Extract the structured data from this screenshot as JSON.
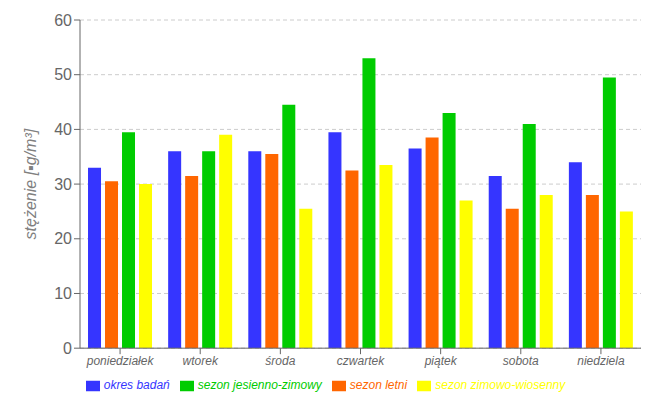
{
  "chart_data": {
    "type": "bar",
    "ylabel": "stężenie [▪g/m³]",
    "categories": [
      "poniedziałek",
      "wtorek",
      "środa",
      "czwartek",
      "piątek",
      "sobota",
      "niedziela"
    ],
    "series": [
      {
        "name": "okres badań",
        "color": "#3535FF",
        "values": [
          33,
          36,
          36,
          39.5,
          36.5,
          31.5,
          34
        ]
      },
      {
        "name": "sezon letni",
        "color": "#FF6600",
        "values": [
          30.5,
          31.5,
          35.5,
          32.5,
          38.5,
          25.5,
          28
        ]
      },
      {
        "name": "sezon jesienno-zimowy",
        "color": "#00CC00",
        "values": [
          39.5,
          36,
          44.5,
          53,
          43,
          41,
          49.5
        ]
      },
      {
        "name": "sezon zimowo-wiosenny",
        "color": "#FFFF00",
        "values": [
          30,
          39,
          25.5,
          33.5,
          27,
          28,
          25
        ]
      }
    ],
    "ylim": [
      0,
      60
    ],
    "yticks": [
      0,
      10,
      20,
      30,
      40,
      50,
      60
    ],
    "grid": true,
    "legend": "bottom"
  }
}
